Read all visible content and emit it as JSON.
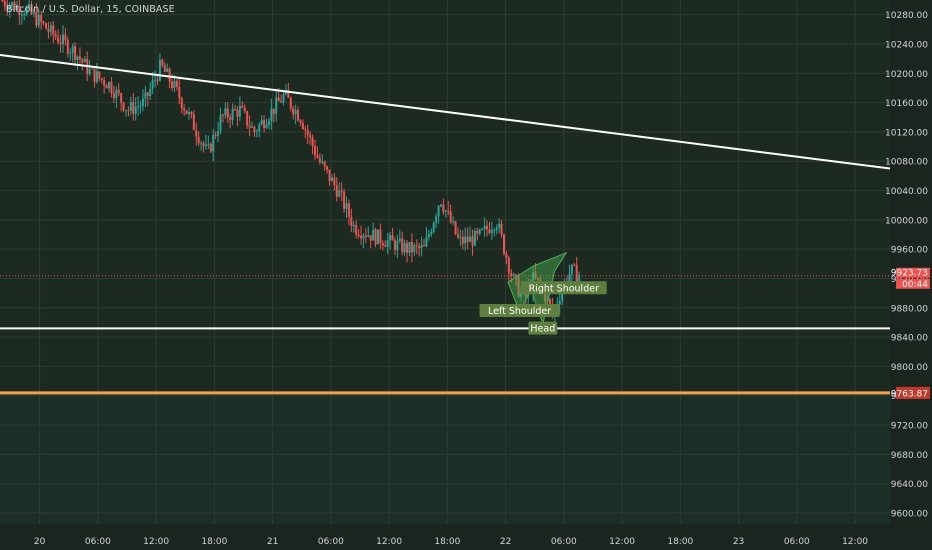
{
  "header": {
    "title": "Bitcoin / U.S. Dollar, 15, COINBASE"
  },
  "colors": {
    "background": "#1d2a21",
    "background_lower": "#1c2f26",
    "grid": "#2f3c33",
    "up": "#26a69a",
    "down": "#ef5350",
    "trendline": "#ffffff",
    "support_line": "#ffffff",
    "price_line": "#f6a04d",
    "pattern_fill": "#4caf50",
    "pattern_label_bg": "#5f7f3e",
    "axis_text": "#d1d4dc",
    "current_price_bg": "#ef5350"
  },
  "chart_data": {
    "type": "candlestick",
    "symbol": "Bitcoin / U.S. Dollar",
    "interval": "15",
    "exchange": "COINBASE",
    "y_ticks": [
      10280,
      10240,
      10200,
      10160,
      10120,
      10080,
      10040,
      10000,
      9960,
      9920,
      9880,
      9840,
      9800,
      9760,
      9720,
      9680,
      9640,
      9600
    ],
    "y_tick_labels": [
      "10280.00",
      "10240.00",
      "10200.00",
      "10160.00",
      "10120.00",
      "10080.00",
      "10040.00",
      "10000.00",
      "9960.00",
      "9920.00",
      "9880.00",
      "9840.00",
      "9800.00",
      "9760.00",
      "9720.00",
      "9680.00",
      "9640.00",
      "9600.00"
    ],
    "ylim": [
      9585,
      10300
    ],
    "x_ticks": [
      {
        "label": "20",
        "pos": 0.0
      },
      {
        "label": "06:00",
        "pos": 0.25
      },
      {
        "label": "12:00",
        "pos": 0.5
      },
      {
        "label": "18:00",
        "pos": 0.75
      },
      {
        "label": "21",
        "pos": 1.0
      },
      {
        "label": "06:00",
        "pos": 1.25
      },
      {
        "label": "12:00",
        "pos": 1.5
      },
      {
        "label": "18:00",
        "pos": 1.75
      },
      {
        "label": "22",
        "pos": 2.0
      },
      {
        "label": "06:00",
        "pos": 2.25
      },
      {
        "label": "12:00",
        "pos": 2.5
      },
      {
        "label": "18:00",
        "pos": 2.75
      },
      {
        "label": "23",
        "pos": 3.0
      },
      {
        "label": "06:00",
        "pos": 3.25
      },
      {
        "label": "12:00",
        "pos": 3.5
      }
    ],
    "xlim": [
      -0.17,
      3.65
    ],
    "price_path": [
      [
        -0.17,
        10300
      ],
      [
        -0.05,
        10285
      ],
      [
        0.05,
        10255
      ],
      [
        0.15,
        10230
      ],
      [
        0.22,
        10200
      ],
      [
        0.3,
        10185
      ],
      [
        0.38,
        10150
      ],
      [
        0.45,
        10160
      ],
      [
        0.52,
        10210
      ],
      [
        0.58,
        10180
      ],
      [
        0.66,
        10130
      ],
      [
        0.72,
        10090
      ],
      [
        0.78,
        10140
      ],
      [
        0.86,
        10150
      ],
      [
        0.92,
        10120
      ],
      [
        1.0,
        10150
      ],
      [
        1.05,
        10170
      ],
      [
        1.12,
        10140
      ],
      [
        1.2,
        10080
      ],
      [
        1.28,
        10040
      ],
      [
        1.35,
        9990
      ],
      [
        1.42,
        9980
      ],
      [
        1.5,
        9970
      ],
      [
        1.58,
        9960
      ],
      [
        1.65,
        9960
      ],
      [
        1.72,
        10030
      ],
      [
        1.8,
        9970
      ],
      [
        1.88,
        9975
      ],
      [
        1.96,
        10000
      ],
      [
        2.03,
        9920
      ],
      [
        2.08,
        9890
      ],
      [
        2.12,
        9920
      ],
      [
        2.16,
        9905
      ],
      [
        2.2,
        9870
      ],
      [
        2.24,
        9905
      ],
      [
        2.28,
        9930
      ],
      [
        2.32,
        9925
      ]
    ],
    "current_price": "9923.73",
    "countdown": "00:44",
    "support_level": 9852,
    "price_line_level": "9763.87",
    "price_line_value": 9763.87,
    "trendline": [
      [
        -0.17,
        10225
      ],
      [
        3.65,
        10070
      ]
    ],
    "pattern": {
      "shape": [
        [
          2.01,
          9915
        ],
        [
          2.06,
          9875
        ],
        [
          2.11,
          9905
        ],
        [
          2.16,
          9858
        ],
        [
          2.21,
          9930
        ],
        [
          2.26,
          9955
        ],
        [
          2.12,
          9937
        ]
      ],
      "labels": [
        {
          "text": "Left Shoulder",
          "x": 2.06,
          "y": 9877
        },
        {
          "text": "Head",
          "x": 2.16,
          "y": 9853
        },
        {
          "text": "Right Shoulder",
          "x": 2.25,
          "y": 9908
        }
      ]
    }
  }
}
